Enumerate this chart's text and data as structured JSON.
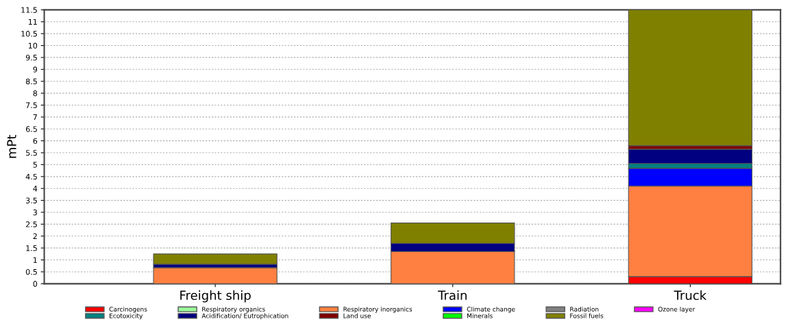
{
  "chart_data": {
    "type": "bar",
    "stacked": true,
    "ylabel": "mPt",
    "categories": [
      "Freight ship",
      "Train",
      "Truck"
    ],
    "series": [
      {
        "name": "Carcinogens",
        "color": "#ff0000",
        "values": [
          0,
          0,
          0.3
        ]
      },
      {
        "name": "Respiratory organics",
        "color": "#99ff99",
        "values": [
          0,
          0,
          0
        ]
      },
      {
        "name": "Respiratory inorganics",
        "color": "#ff8040",
        "values": [
          0.68,
          1.35,
          3.8
        ]
      },
      {
        "name": "Climate change",
        "color": "#0000ff",
        "values": [
          0,
          0,
          0.75
        ]
      },
      {
        "name": "Radiation",
        "color": "#808080",
        "values": [
          0,
          0,
          0
        ]
      },
      {
        "name": "Ozone layer",
        "color": "#ff00ff",
        "values": [
          0,
          0,
          0
        ]
      },
      {
        "name": "Ecotoxicity",
        "color": "#008080",
        "values": [
          0,
          0,
          0.2
        ]
      },
      {
        "name": "Acidification/ Eutrophication",
        "color": "#000080",
        "values": [
          0.14,
          0.35,
          0.6
        ]
      },
      {
        "name": "Land use",
        "color": "#800000",
        "values": [
          0,
          0,
          0.15
        ]
      },
      {
        "name": "Minerals",
        "color": "#00ff00",
        "values": [
          0,
          0,
          0
        ]
      },
      {
        "name": "Fossil fuels",
        "color": "#808000",
        "values": [
          0.43,
          0.85,
          5.7
        ]
      }
    ],
    "ylim": [
      0,
      11.5
    ],
    "yticks": [
      0,
      0.5,
      1,
      1.5,
      2,
      2.5,
      3,
      3.5,
      4,
      4.5,
      5,
      5.5,
      6,
      6.5,
      7,
      7.5,
      8,
      8.5,
      9,
      9.5,
      10,
      10.5,
      11,
      11.5
    ],
    "grid": "y",
    "legend": "bottom"
  }
}
